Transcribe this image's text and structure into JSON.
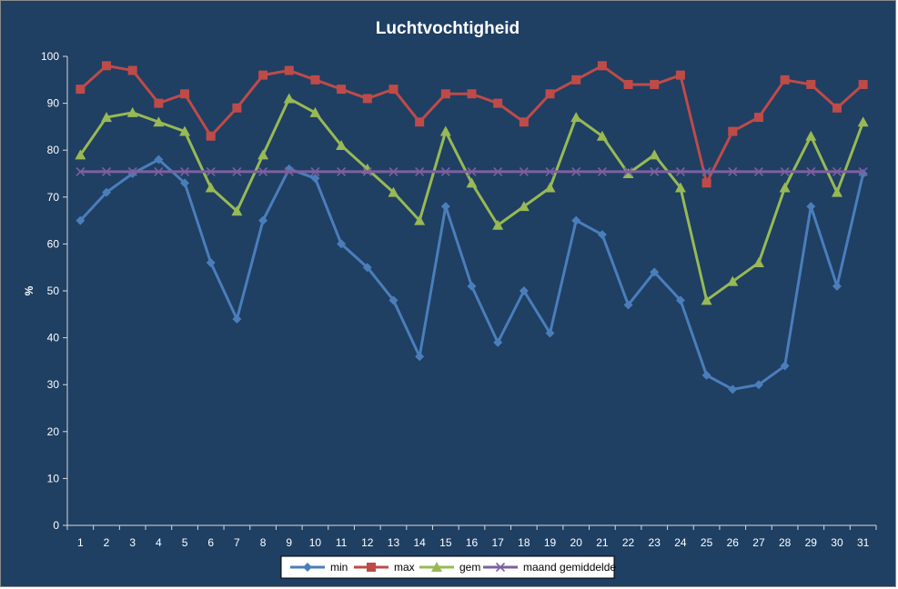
{
  "chart_data": {
    "type": "line",
    "title": "Luchtvochtigheid",
    "xlabel": "",
    "ylabel": "%",
    "ylim": [
      0,
      100
    ],
    "y_ticks": [
      0,
      10,
      20,
      30,
      40,
      50,
      60,
      70,
      80,
      90,
      100
    ],
    "x": [
      1,
      2,
      3,
      4,
      5,
      6,
      7,
      8,
      9,
      10,
      11,
      12,
      13,
      14,
      15,
      16,
      17,
      18,
      19,
      20,
      21,
      22,
      23,
      24,
      25,
      26,
      27,
      28,
      29,
      30,
      31
    ],
    "grid": false,
    "legend_position": "bottom",
    "series": [
      {
        "name": "min",
        "color": "#4a7ebb",
        "marker": "diamond",
        "values": [
          65,
          71,
          75,
          78,
          73,
          56,
          44,
          65,
          76,
          74,
          60,
          55,
          48,
          36,
          68,
          51,
          39,
          50,
          41,
          65,
          62,
          47,
          54,
          48,
          32,
          29,
          30,
          34,
          68,
          51,
          75
        ]
      },
      {
        "name": "max",
        "color": "#be4b48",
        "marker": "square",
        "values": [
          93,
          98,
          97,
          90,
          92,
          83,
          89,
          96,
          97,
          95,
          93,
          91,
          93,
          86,
          92,
          92,
          90,
          86,
          92,
          95,
          98,
          94,
          94,
          96,
          73,
          84,
          87,
          95,
          94,
          89,
          94
        ]
      },
      {
        "name": "gem",
        "color": "#98b954",
        "marker": "triangle",
        "values": [
          79,
          87,
          88,
          86,
          84,
          72,
          67,
          79,
          91,
          88,
          81,
          76,
          71,
          65,
          84,
          73,
          64,
          68,
          72,
          87,
          83,
          75,
          79,
          72,
          48,
          52,
          56,
          72,
          83,
          71,
          86
        ]
      },
      {
        "name": "maand gemiddelde",
        "color": "#7d60a0",
        "marker": "x",
        "values": [
          75.4,
          75.4,
          75.4,
          75.4,
          75.4,
          75.4,
          75.4,
          75.4,
          75.4,
          75.4,
          75.4,
          75.4,
          75.4,
          75.4,
          75.4,
          75.4,
          75.4,
          75.4,
          75.4,
          75.4,
          75.4,
          75.4,
          75.4,
          75.4,
          75.4,
          75.4,
          75.4,
          75.4,
          75.4,
          75.4,
          75.4
        ]
      }
    ]
  }
}
